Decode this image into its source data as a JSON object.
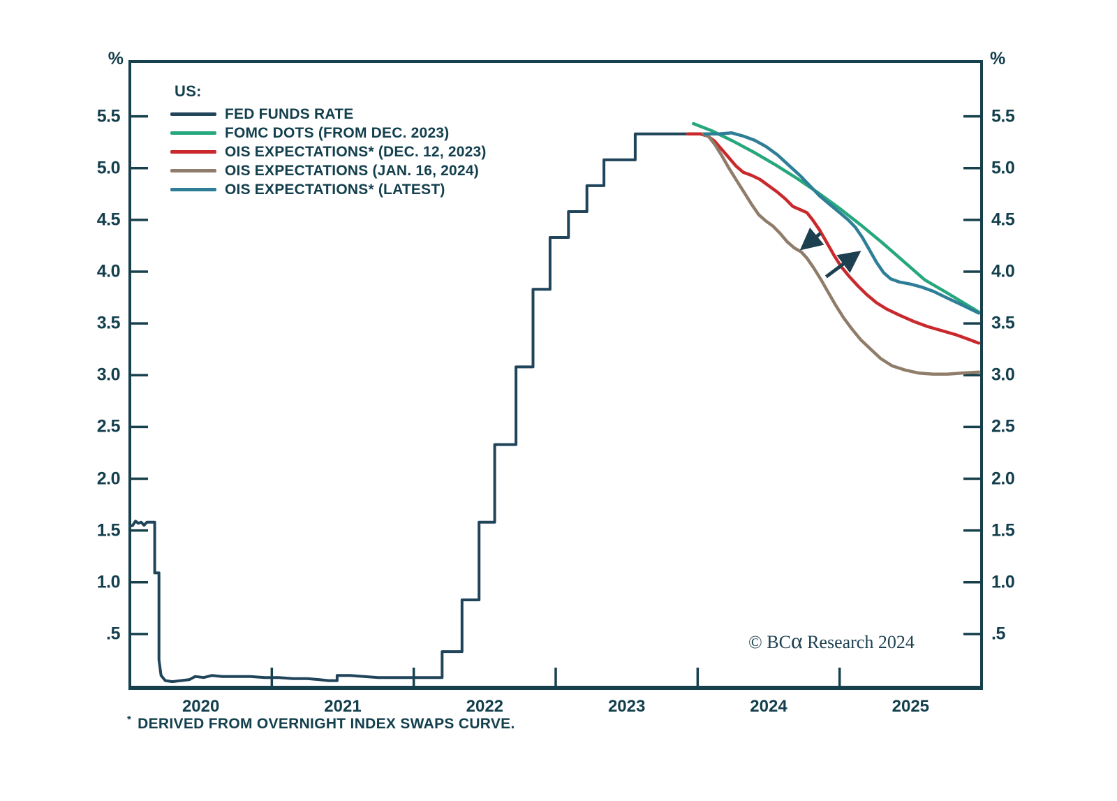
{
  "chart_data": {
    "type": "line",
    "title": "",
    "unit_label": "%",
    "x_axis": {
      "range": [
        2020.0,
        2026.0
      ],
      "ticks": [
        2021,
        2022,
        2023,
        2024,
        2025
      ],
      "year_labels": [
        "2020",
        "2021",
        "2022",
        "2023",
        "2024",
        "2025"
      ],
      "year_label_positions": [
        2020.5,
        2021.5,
        2022.5,
        2023.5,
        2024.5,
        2025.5
      ]
    },
    "y_axis": {
      "range": [
        -0.02,
        6.03
      ],
      "tick_values": [
        5.5,
        5.0,
        4.5,
        4.0,
        3.5,
        3.0,
        2.5,
        2.0,
        1.5,
        1.0,
        0.5
      ],
      "tick_labels": [
        "5.5",
        "5.0",
        "4.5",
        "4.0",
        "3.5",
        "3.0",
        "2.5",
        "2.0",
        "1.5",
        "1.0",
        ".5"
      ]
    },
    "legend": {
      "heading": "US:",
      "entries": [
        {
          "label": "FED FUNDS RATE",
          "color": "#23455c"
        },
        {
          "label": "FOMC DOTS (FROM DEC. 2023)",
          "color": "#27a77d"
        },
        {
          "label": "OIS EXPECTATIONS* (DEC. 12, 2023)",
          "color": "#c9292c"
        },
        {
          "label": "OIS EXPECTATIONS (JAN. 16, 2024)",
          "color": "#8f7d6a"
        },
        {
          "label": "OIS EXPECTATIONS* (LATEST)",
          "color": "#2d7e96"
        }
      ]
    },
    "series": [
      {
        "name": "FED FUNDS RATE",
        "color": "#20445a",
        "width": 4,
        "points": [
          [
            2020.0,
            1.54
          ],
          [
            2020.02,
            1.55
          ],
          [
            2020.04,
            1.59
          ],
          [
            2020.06,
            1.57
          ],
          [
            2020.08,
            1.58
          ],
          [
            2020.1,
            1.55
          ],
          [
            2020.12,
            1.58
          ],
          [
            2020.175,
            1.58
          ],
          [
            2020.175,
            1.09
          ],
          [
            2020.205,
            1.09
          ],
          [
            2020.205,
            0.25
          ],
          [
            2020.22,
            0.1
          ],
          [
            2020.25,
            0.05
          ],
          [
            2020.3,
            0.04
          ],
          [
            2020.36,
            0.05
          ],
          [
            2020.42,
            0.06
          ],
          [
            2020.46,
            0.09
          ],
          [
            2020.52,
            0.08
          ],
          [
            2020.58,
            0.1
          ],
          [
            2020.65,
            0.09
          ],
          [
            2020.75,
            0.09
          ],
          [
            2020.85,
            0.09
          ],
          [
            2020.95,
            0.08
          ],
          [
            2021.05,
            0.08
          ],
          [
            2021.15,
            0.07
          ],
          [
            2021.25,
            0.07
          ],
          [
            2021.33,
            0.06
          ],
          [
            2021.4,
            0.05
          ],
          [
            2021.46,
            0.05
          ],
          [
            2021.46,
            0.1
          ],
          [
            2021.55,
            0.1
          ],
          [
            2021.65,
            0.09
          ],
          [
            2021.75,
            0.08
          ],
          [
            2021.9,
            0.08
          ],
          [
            2022.1,
            0.08
          ],
          [
            2022.2,
            0.08
          ],
          [
            2022.2,
            0.33
          ],
          [
            2022.34,
            0.33
          ],
          [
            2022.34,
            0.83
          ],
          [
            2022.46,
            0.83
          ],
          [
            2022.46,
            1.58
          ],
          [
            2022.57,
            1.58
          ],
          [
            2022.57,
            2.33
          ],
          [
            2022.72,
            2.33
          ],
          [
            2022.72,
            3.08
          ],
          [
            2022.84,
            3.08
          ],
          [
            2022.84,
            3.83
          ],
          [
            2022.96,
            3.83
          ],
          [
            2022.96,
            4.33
          ],
          [
            2023.09,
            4.33
          ],
          [
            2023.09,
            4.58
          ],
          [
            2023.22,
            4.58
          ],
          [
            2023.22,
            4.83
          ],
          [
            2023.34,
            4.83
          ],
          [
            2023.34,
            5.08
          ],
          [
            2023.56,
            5.08
          ],
          [
            2023.56,
            5.33
          ],
          [
            2024.05,
            5.33
          ]
        ]
      },
      {
        "name": "FOMC DOTS (FROM DEC. 2023)",
        "color": "#27a77d",
        "width": 4.5,
        "points": [
          [
            2023.97,
            5.43
          ],
          [
            2024.1,
            5.36
          ],
          [
            2024.25,
            5.26
          ],
          [
            2024.4,
            5.15
          ],
          [
            2024.55,
            5.03
          ],
          [
            2024.7,
            4.9
          ],
          [
            2024.85,
            4.76
          ],
          [
            2025.0,
            4.61
          ],
          [
            2025.15,
            4.45
          ],
          [
            2025.3,
            4.28
          ],
          [
            2025.45,
            4.1
          ],
          [
            2025.6,
            3.92
          ],
          [
            2025.75,
            3.8
          ],
          [
            2025.86,
            3.71
          ],
          [
            2025.98,
            3.61
          ]
        ]
      },
      {
        "name": "OIS EXPECTATIONS* (DEC. 12, 2023)",
        "color": "#c9292c",
        "width": 4.5,
        "points": [
          [
            2023.93,
            5.33
          ],
          [
            2024.02,
            5.33
          ],
          [
            2024.07,
            5.31
          ],
          [
            2024.12,
            5.26
          ],
          [
            2024.17,
            5.18
          ],
          [
            2024.22,
            5.1
          ],
          [
            2024.27,
            5.02
          ],
          [
            2024.32,
            4.96
          ],
          [
            2024.38,
            4.93
          ],
          [
            2024.44,
            4.89
          ],
          [
            2024.5,
            4.83
          ],
          [
            2024.56,
            4.77
          ],
          [
            2024.62,
            4.7
          ],
          [
            2024.67,
            4.63
          ],
          [
            2024.72,
            4.6
          ],
          [
            2024.77,
            4.57
          ],
          [
            2024.81,
            4.5
          ],
          [
            2024.86,
            4.4
          ],
          [
            2024.91,
            4.28
          ],
          [
            2024.96,
            4.16
          ],
          [
            2025.01,
            4.05
          ],
          [
            2025.07,
            3.95
          ],
          [
            2025.13,
            3.86
          ],
          [
            2025.19,
            3.78
          ],
          [
            2025.26,
            3.7
          ],
          [
            2025.33,
            3.64
          ],
          [
            2025.42,
            3.58
          ],
          [
            2025.52,
            3.52
          ],
          [
            2025.62,
            3.47
          ],
          [
            2025.72,
            3.43
          ],
          [
            2025.82,
            3.39
          ],
          [
            2025.9,
            3.35
          ],
          [
            2025.98,
            3.31
          ]
        ]
      },
      {
        "name": "OIS EXPECTATIONS (JAN. 16, 2024)",
        "color": "#8f7d6a",
        "width": 4.5,
        "points": [
          [
            2024.04,
            5.33
          ],
          [
            2024.08,
            5.3
          ],
          [
            2024.12,
            5.23
          ],
          [
            2024.17,
            5.12
          ],
          [
            2024.22,
            5.0
          ],
          [
            2024.27,
            4.89
          ],
          [
            2024.33,
            4.76
          ],
          [
            2024.38,
            4.65
          ],
          [
            2024.43,
            4.55
          ],
          [
            2024.48,
            4.49
          ],
          [
            2024.53,
            4.44
          ],
          [
            2024.58,
            4.37
          ],
          [
            2024.63,
            4.29
          ],
          [
            2024.68,
            4.23
          ],
          [
            2024.73,
            4.19
          ],
          [
            2024.77,
            4.13
          ],
          [
            2024.82,
            4.03
          ],
          [
            2024.87,
            3.92
          ],
          [
            2024.92,
            3.8
          ],
          [
            2024.97,
            3.68
          ],
          [
            2025.03,
            3.55
          ],
          [
            2025.09,
            3.44
          ],
          [
            2025.15,
            3.34
          ],
          [
            2025.22,
            3.25
          ],
          [
            2025.29,
            3.16
          ],
          [
            2025.37,
            3.09
          ],
          [
            2025.46,
            3.05
          ],
          [
            2025.56,
            3.02
          ],
          [
            2025.66,
            3.01
          ],
          [
            2025.76,
            3.01
          ],
          [
            2025.86,
            3.02
          ],
          [
            2025.98,
            3.03
          ]
        ]
      },
      {
        "name": "OIS EXPECTATIONS* (LATEST)",
        "color": "#2d7e96",
        "width": 4.5,
        "points": [
          [
            2024.05,
            5.33
          ],
          [
            2024.15,
            5.33
          ],
          [
            2024.24,
            5.34
          ],
          [
            2024.32,
            5.31
          ],
          [
            2024.4,
            5.27
          ],
          [
            2024.48,
            5.21
          ],
          [
            2024.56,
            5.13
          ],
          [
            2024.64,
            5.03
          ],
          [
            2024.72,
            4.93
          ],
          [
            2024.79,
            4.83
          ],
          [
            2024.86,
            4.73
          ],
          [
            2024.93,
            4.65
          ],
          [
            2025.0,
            4.57
          ],
          [
            2025.06,
            4.5
          ],
          [
            2025.11,
            4.43
          ],
          [
            2025.16,
            4.33
          ],
          [
            2025.21,
            4.21
          ],
          [
            2025.26,
            4.09
          ],
          [
            2025.31,
            3.99
          ],
          [
            2025.36,
            3.93
          ],
          [
            2025.42,
            3.9
          ],
          [
            2025.5,
            3.88
          ],
          [
            2025.58,
            3.85
          ],
          [
            2025.66,
            3.81
          ],
          [
            2025.75,
            3.75
          ],
          [
            2025.86,
            3.68
          ],
          [
            2025.98,
            3.6
          ]
        ]
      }
    ],
    "annotations": {
      "arrow_color": "#1d4050",
      "arrows": [
        {
          "name": "repricing-down-arrow",
          "from": [
            2024.865,
            4.37
          ],
          "to": [
            2024.75,
            4.24
          ]
        },
        {
          "name": "repricing-up-arrow",
          "from": [
            2024.905,
            3.95
          ],
          "to": [
            2025.12,
            4.17
          ]
        }
      ]
    },
    "axis_color": "#17404d",
    "footnote_marker": "*",
    "footnote": "DERIVED FROM OVERNIGHT INDEX SWAPS CURVE.",
    "copyright_pre": "© BC",
    "copyright_alpha": "α",
    "copyright_post": " Research 2024"
  }
}
